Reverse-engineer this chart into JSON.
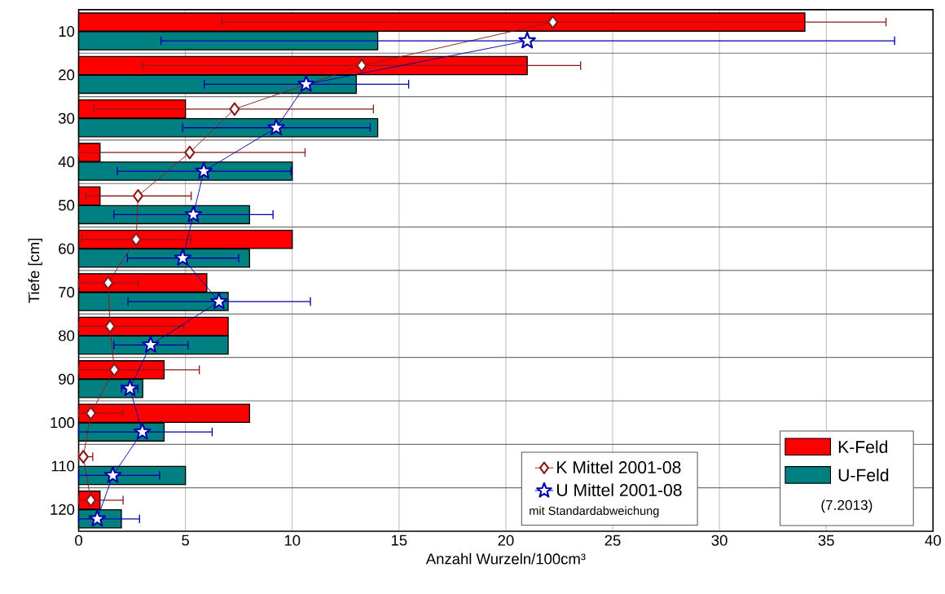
{
  "chart_data": {
    "type": "bar",
    "orientation": "horizontal",
    "xlabel": "Anzahl Wurzeln/100cm³",
    "ylabel": "Tiefe [cm]",
    "categories": [
      "10",
      "20",
      "30",
      "40",
      "50",
      "60",
      "70",
      "80",
      "90",
      "100",
      "110",
      "120"
    ],
    "series": [
      {
        "name": "K-Feld",
        "color": "#ff0000",
        "values": [
          34,
          21,
          5,
          1,
          1,
          10,
          6,
          7,
          4,
          8,
          0,
          1
        ]
      },
      {
        "name": "U-Feld",
        "color": "#008080",
        "values": [
          14,
          13,
          14,
          10,
          8,
          8,
          7,
          7,
          3,
          4,
          5,
          2
        ]
      },
      {
        "name": "K Mittel 2001-08",
        "type": "line",
        "color": "#8b1a1a",
        "marker": "diamond",
        "values": [
          22.2,
          13.25,
          7.3,
          5.2,
          2.78,
          2.69,
          1.38,
          1.47,
          1.67,
          0.57,
          0.22,
          0.57
        ],
        "errors": [
          [
            6.7,
            37.8
          ],
          [
            3.0,
            23.5
          ],
          [
            0.72,
            13.8
          ],
          [
            0,
            10.6
          ],
          [
            0.32,
            5.27
          ],
          [
            0.15,
            5.25
          ],
          [
            0,
            2.78
          ],
          [
            0,
            4.93
          ],
          [
            0,
            5.65
          ],
          [
            0,
            2.08
          ],
          [
            0,
            0.66
          ],
          [
            0,
            2.08
          ]
        ]
      },
      {
        "name": "U Mittel 2001-08",
        "type": "line",
        "color": "#0000aa",
        "marker": "star",
        "values": [
          21.0,
          10.65,
          9.25,
          5.86,
          5.37,
          4.87,
          6.57,
          3.37,
          2.4,
          2.98,
          1.6,
          0.87
        ],
        "errors": [
          [
            3.86,
            38.2
          ],
          [
            5.88,
            15.45
          ],
          [
            4.87,
            13.65
          ],
          [
            1.81,
            9.94
          ],
          [
            1.65,
            9.1
          ],
          [
            2.28,
            7.49
          ],
          [
            2.31,
            10.85
          ],
          [
            1.65,
            5.12
          ],
          [
            2.0,
            2.78
          ],
          [
            0,
            6.25
          ],
          [
            0,
            3.79
          ],
          [
            0,
            2.85
          ]
        ]
      }
    ],
    "xlim": [
      0,
      40
    ],
    "xticks": [
      0,
      5,
      10,
      15,
      20,
      25,
      30,
      35,
      40
    ],
    "grid": true,
    "legend": "bottom right",
    "annotations": [
      "mit Standardabweichung",
      "(7.2013)"
    ]
  }
}
